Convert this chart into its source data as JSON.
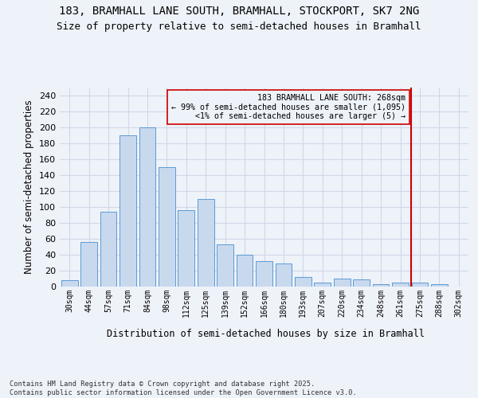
{
  "title_line1": "183, BRAMHALL LANE SOUTH, BRAMHALL, STOCKPORT, SK7 2NG",
  "title_line2": "Size of property relative to semi-detached houses in Bramhall",
  "xlabel": "Distribution of semi-detached houses by size in Bramhall",
  "ylabel": "Number of semi-detached properties",
  "categories": [
    "30sqm",
    "44sqm",
    "57sqm",
    "71sqm",
    "84sqm",
    "98sqm",
    "112sqm",
    "125sqm",
    "139sqm",
    "152sqm",
    "166sqm",
    "180sqm",
    "193sqm",
    "207sqm",
    "220sqm",
    "234sqm",
    "248sqm",
    "261sqm",
    "275sqm",
    "288sqm",
    "302sqm"
  ],
  "values": [
    8,
    56,
    94,
    190,
    200,
    150,
    96,
    110,
    53,
    40,
    32,
    29,
    12,
    5,
    10,
    9,
    3,
    5,
    5,
    3,
    0
  ],
  "bar_color": "#c8d9ee",
  "bar_edge_color": "#5b9bd5",
  "annotation_line1": "183 BRAMHALL LANE SOUTH: 268sqm",
  "annotation_line2": "← 99% of semi-detached houses are smaller (1,095)",
  "annotation_line3": "<1% of semi-detached houses are larger (5) →",
  "vline_x_index": 17.55,
  "vline_color": "#cc0000",
  "ylim": [
    0,
    250
  ],
  "yticks": [
    0,
    20,
    40,
    60,
    80,
    100,
    120,
    140,
    160,
    180,
    200,
    220,
    240
  ],
  "background_color": "#eef2f9",
  "grid_color": "#d0d8e8",
  "footer": "Contains HM Land Registry data © Crown copyright and database right 2025.\nContains public sector information licensed under the Open Government Licence v3.0.",
  "title_fontsize": 10,
  "subtitle_fontsize": 9,
  "bar_width": 0.85
}
